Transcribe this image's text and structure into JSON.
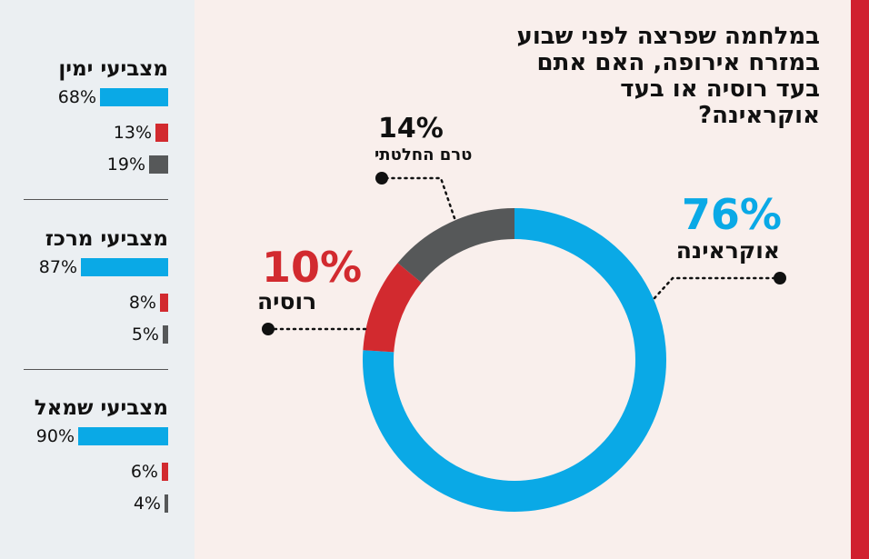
{
  "colors": {
    "blue": "#0aa9e6",
    "red": "#d22a2f",
    "gray": "#565859",
    "accent_strip": "#d0202f",
    "sidebar_bg": "#ebeff2",
    "page_bg": "#f9efec"
  },
  "title": "במלחמה שפרצה לפני שבוע במזרח אירופה, האם אתם בעד רוסיה או בעד אוקראינה?",
  "chart_data": [
    {
      "type": "pie",
      "variant": "donut",
      "title": "במלחמה שפרצה לפני שבוע במזרח אירופה, האם אתם בעד רוסיה או בעד אוקראינה?",
      "slices": [
        {
          "label": "אוקראינה",
          "value": 76,
          "value_label": "76%",
          "color": "#0aa9e6"
        },
        {
          "label": "רוסיה",
          "value": 10,
          "value_label": "10%",
          "color": "#d22a2f"
        },
        {
          "label": "טרם החלטתי",
          "value": 14,
          "value_label": "14%",
          "color": "#565859"
        }
      ]
    },
    {
      "type": "bar",
      "orientation": "horizontal",
      "categories": [
        "אוקראינה",
        "רוסיה",
        "טרם החלטתי"
      ],
      "groups": [
        {
          "name": "מצביעי ימין",
          "values": [
            68,
            13,
            19
          ],
          "labels": [
            "68%",
            "13%",
            "19%"
          ]
        },
        {
          "name": "מצביעי מרכז",
          "values": [
            87,
            8,
            5
          ],
          "labels": [
            "87%",
            "8%",
            "5%"
          ]
        },
        {
          "name": "מצביעי שמאל",
          "values": [
            90,
            6,
            4
          ],
          "labels": [
            "90%",
            "6%",
            "4%"
          ]
        }
      ],
      "colors": [
        "#0aa9e6",
        "#d22a2f",
        "#565859"
      ],
      "xlim": [
        0,
        100
      ]
    }
  ]
}
